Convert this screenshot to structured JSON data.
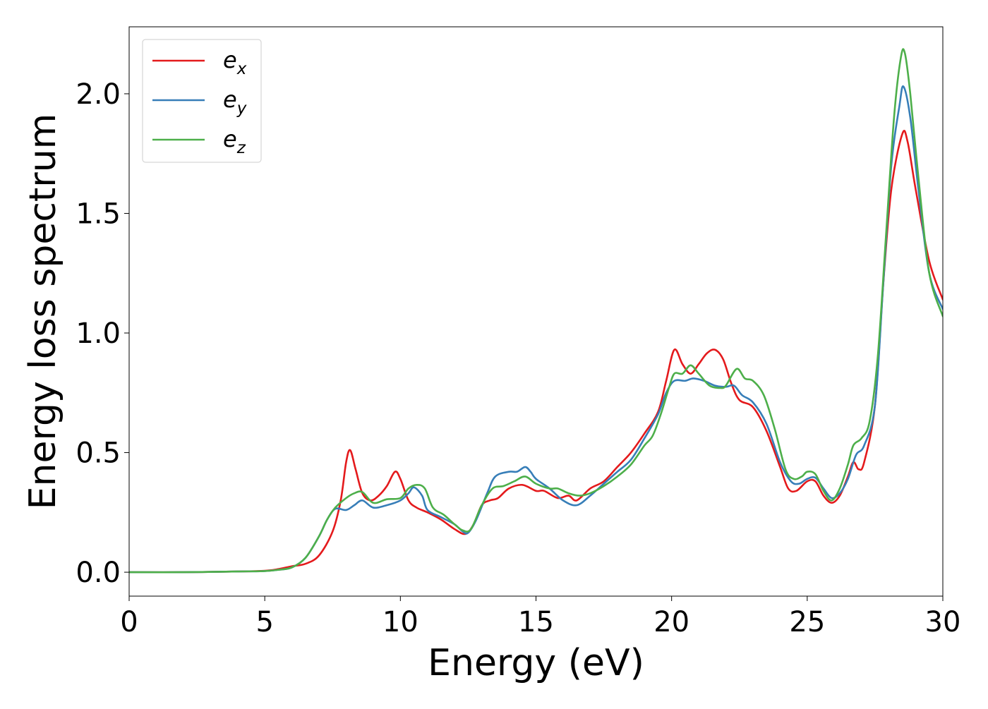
{
  "chart_data": {
    "type": "line",
    "title": "",
    "xlabel": "Energy (eV)",
    "ylabel": "Energy loss spectrum",
    "xlim": [
      0,
      30
    ],
    "ylim": [
      -0.1,
      2.28
    ],
    "xticks": [
      0,
      5,
      10,
      15,
      20,
      25,
      30
    ],
    "xtick_labels": [
      "0",
      "5",
      "10",
      "15",
      "20",
      "25",
      "30"
    ],
    "yticks": [
      0.0,
      0.5,
      1.0,
      1.5,
      2.0
    ],
    "ytick_labels": [
      "0.0",
      "0.5",
      "1.0",
      "1.5",
      "2.0"
    ],
    "grid": false,
    "legend_position": "top-left",
    "series": [
      {
        "name": "e_x",
        "label_base": "e",
        "label_sub": "x",
        "color": "#e41a1c",
        "points": [
          [
            0,
            0.0
          ],
          [
            2,
            0.0
          ],
          [
            4,
            0.003
          ],
          [
            5,
            0.006
          ],
          [
            5.5,
            0.013
          ],
          [
            6,
            0.025
          ],
          [
            6.5,
            0.035
          ],
          [
            7,
            0.07
          ],
          [
            7.5,
            0.17
          ],
          [
            7.8,
            0.3
          ],
          [
            8.0,
            0.46
          ],
          [
            8.15,
            0.51
          ],
          [
            8.35,
            0.43
          ],
          [
            8.6,
            0.33
          ],
          [
            8.9,
            0.3
          ],
          [
            9.2,
            0.32
          ],
          [
            9.5,
            0.36
          ],
          [
            9.8,
            0.42
          ],
          [
            10.0,
            0.39
          ],
          [
            10.3,
            0.3
          ],
          [
            10.6,
            0.27
          ],
          [
            11.0,
            0.25
          ],
          [
            11.5,
            0.22
          ],
          [
            12.0,
            0.18
          ],
          [
            12.4,
            0.16
          ],
          [
            12.7,
            0.2
          ],
          [
            13.0,
            0.28
          ],
          [
            13.3,
            0.3
          ],
          [
            13.6,
            0.31
          ],
          [
            14.0,
            0.35
          ],
          [
            14.5,
            0.365
          ],
          [
            15.0,
            0.34
          ],
          [
            15.3,
            0.34
          ],
          [
            15.8,
            0.31
          ],
          [
            16.2,
            0.32
          ],
          [
            16.5,
            0.3
          ],
          [
            17.0,
            0.35
          ],
          [
            17.5,
            0.38
          ],
          [
            18.0,
            0.44
          ],
          [
            18.5,
            0.5
          ],
          [
            19.0,
            0.58
          ],
          [
            19.5,
            0.67
          ],
          [
            19.8,
            0.8
          ],
          [
            20.1,
            0.93
          ],
          [
            20.4,
            0.87
          ],
          [
            20.7,
            0.83
          ],
          [
            21.0,
            0.87
          ],
          [
            21.3,
            0.915
          ],
          [
            21.6,
            0.93
          ],
          [
            21.9,
            0.89
          ],
          [
            22.2,
            0.79
          ],
          [
            22.5,
            0.72
          ],
          [
            23.0,
            0.69
          ],
          [
            23.5,
            0.59
          ],
          [
            24.0,
            0.44
          ],
          [
            24.3,
            0.35
          ],
          [
            24.6,
            0.34
          ],
          [
            25.0,
            0.38
          ],
          [
            25.3,
            0.38
          ],
          [
            25.6,
            0.32
          ],
          [
            25.9,
            0.29
          ],
          [
            26.2,
            0.32
          ],
          [
            26.5,
            0.4
          ],
          [
            26.7,
            0.46
          ],
          [
            26.9,
            0.43
          ],
          [
            27.1,
            0.46
          ],
          [
            27.5,
            0.7
          ],
          [
            27.8,
            1.2
          ],
          [
            28.1,
            1.6
          ],
          [
            28.5,
            1.83
          ],
          [
            28.7,
            1.8
          ],
          [
            29.0,
            1.6
          ],
          [
            29.5,
            1.3
          ],
          [
            30.0,
            1.14
          ]
        ]
      },
      {
        "name": "e_y",
        "label_base": "e",
        "label_sub": "y",
        "color": "#377eb8",
        "points": [
          [
            0,
            0.0
          ],
          [
            2,
            0.0
          ],
          [
            4,
            0.003
          ],
          [
            5,
            0.005
          ],
          [
            5.5,
            0.01
          ],
          [
            6,
            0.02
          ],
          [
            6.5,
            0.06
          ],
          [
            7,
            0.15
          ],
          [
            7.3,
            0.22
          ],
          [
            7.6,
            0.265
          ],
          [
            8.0,
            0.26
          ],
          [
            8.3,
            0.28
          ],
          [
            8.6,
            0.3
          ],
          [
            9.0,
            0.27
          ],
          [
            9.5,
            0.28
          ],
          [
            10.0,
            0.3
          ],
          [
            10.3,
            0.33
          ],
          [
            10.5,
            0.355
          ],
          [
            10.8,
            0.32
          ],
          [
            11.0,
            0.26
          ],
          [
            11.5,
            0.23
          ],
          [
            12.0,
            0.2
          ],
          [
            12.3,
            0.17
          ],
          [
            12.5,
            0.165
          ],
          [
            12.8,
            0.22
          ],
          [
            13.2,
            0.33
          ],
          [
            13.5,
            0.4
          ],
          [
            14.0,
            0.42
          ],
          [
            14.3,
            0.42
          ],
          [
            14.6,
            0.44
          ],
          [
            14.8,
            0.42
          ],
          [
            15.0,
            0.39
          ],
          [
            15.5,
            0.35
          ],
          [
            16.0,
            0.3
          ],
          [
            16.5,
            0.28
          ],
          [
            17.0,
            0.32
          ],
          [
            17.5,
            0.37
          ],
          [
            18.0,
            0.42
          ],
          [
            18.5,
            0.47
          ],
          [
            19.0,
            0.56
          ],
          [
            19.5,
            0.66
          ],
          [
            19.8,
            0.75
          ],
          [
            20.1,
            0.8
          ],
          [
            20.5,
            0.8
          ],
          [
            20.8,
            0.81
          ],
          [
            21.2,
            0.8
          ],
          [
            21.6,
            0.78
          ],
          [
            22.0,
            0.775
          ],
          [
            22.3,
            0.78
          ],
          [
            22.6,
            0.74
          ],
          [
            23.0,
            0.71
          ],
          [
            23.5,
            0.62
          ],
          [
            24.0,
            0.46
          ],
          [
            24.4,
            0.38
          ],
          [
            24.7,
            0.37
          ],
          [
            25.0,
            0.39
          ],
          [
            25.3,
            0.395
          ],
          [
            25.6,
            0.35
          ],
          [
            25.9,
            0.31
          ],
          [
            26.2,
            0.33
          ],
          [
            26.5,
            0.39
          ],
          [
            26.8,
            0.49
          ],
          [
            27.1,
            0.53
          ],
          [
            27.5,
            0.7
          ],
          [
            27.8,
            1.2
          ],
          [
            28.1,
            1.7
          ],
          [
            28.4,
            1.95
          ],
          [
            28.55,
            2.03
          ],
          [
            28.8,
            1.9
          ],
          [
            29.1,
            1.6
          ],
          [
            29.5,
            1.25
          ],
          [
            30.0,
            1.1
          ]
        ]
      },
      {
        "name": "e_z",
        "label_base": "e",
        "label_sub": "z",
        "color": "#4daf4a",
        "points": [
          [
            0,
            0.0
          ],
          [
            2,
            0.0
          ],
          [
            4,
            0.003
          ],
          [
            5,
            0.005
          ],
          [
            5.5,
            0.01
          ],
          [
            6,
            0.02
          ],
          [
            6.5,
            0.06
          ],
          [
            7,
            0.15
          ],
          [
            7.3,
            0.22
          ],
          [
            7.6,
            0.27
          ],
          [
            8.0,
            0.31
          ],
          [
            8.3,
            0.33
          ],
          [
            8.6,
            0.335
          ],
          [
            9.0,
            0.29
          ],
          [
            9.5,
            0.305
          ],
          [
            10.0,
            0.31
          ],
          [
            10.3,
            0.35
          ],
          [
            10.6,
            0.365
          ],
          [
            10.9,
            0.35
          ],
          [
            11.2,
            0.27
          ],
          [
            11.6,
            0.24
          ],
          [
            12.0,
            0.2
          ],
          [
            12.3,
            0.175
          ],
          [
            12.6,
            0.18
          ],
          [
            13.0,
            0.28
          ],
          [
            13.4,
            0.35
          ],
          [
            13.8,
            0.36
          ],
          [
            14.2,
            0.38
          ],
          [
            14.6,
            0.4
          ],
          [
            15.0,
            0.37
          ],
          [
            15.5,
            0.35
          ],
          [
            15.8,
            0.35
          ],
          [
            16.2,
            0.33
          ],
          [
            16.6,
            0.32
          ],
          [
            17.0,
            0.33
          ],
          [
            17.5,
            0.36
          ],
          [
            18.0,
            0.4
          ],
          [
            18.5,
            0.45
          ],
          [
            19.0,
            0.53
          ],
          [
            19.3,
            0.57
          ],
          [
            19.6,
            0.66
          ],
          [
            19.9,
            0.77
          ],
          [
            20.1,
            0.83
          ],
          [
            20.4,
            0.83
          ],
          [
            20.7,
            0.865
          ],
          [
            21.0,
            0.83
          ],
          [
            21.4,
            0.78
          ],
          [
            21.8,
            0.77
          ],
          [
            22.0,
            0.78
          ],
          [
            22.4,
            0.85
          ],
          [
            22.7,
            0.81
          ],
          [
            23.0,
            0.8
          ],
          [
            23.4,
            0.74
          ],
          [
            23.8,
            0.6
          ],
          [
            24.2,
            0.43
          ],
          [
            24.5,
            0.39
          ],
          [
            24.8,
            0.4
          ],
          [
            25.0,
            0.42
          ],
          [
            25.3,
            0.41
          ],
          [
            25.6,
            0.34
          ],
          [
            25.9,
            0.3
          ],
          [
            26.2,
            0.35
          ],
          [
            26.5,
            0.45
          ],
          [
            26.7,
            0.53
          ],
          [
            27.0,
            0.56
          ],
          [
            27.3,
            0.63
          ],
          [
            27.6,
            0.9
          ],
          [
            27.9,
            1.4
          ],
          [
            28.2,
            1.9
          ],
          [
            28.45,
            2.15
          ],
          [
            28.6,
            2.17
          ],
          [
            28.8,
            2.0
          ],
          [
            29.1,
            1.65
          ],
          [
            29.5,
            1.25
          ],
          [
            30.0,
            1.07
          ]
        ]
      }
    ]
  }
}
